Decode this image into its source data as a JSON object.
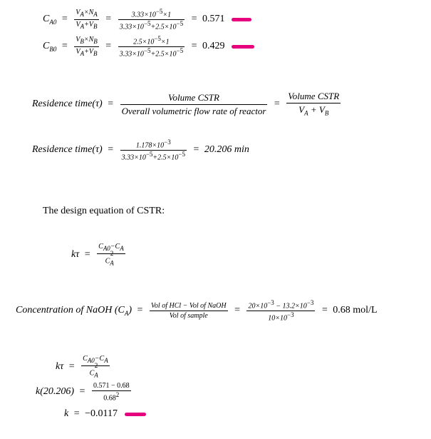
{
  "colors": {
    "text": "#000000",
    "background": "#ffffff",
    "highlight": "#e6007e"
  },
  "eq1": {
    "lhs": "C<sub class='sub'>A0</sub>",
    "f1n": "V<sub class='sub'>A</sub>×N<sub class='sub'>A</sub>",
    "f1d": "V<sub class='sub'>A</sub>+V<sub class='sub'>B</sub>",
    "f2n": "3.33×10<sup class='sup'>−5</sup>×1",
    "f2d": "3.33×10<sup class='sup'>−5</sup>+2.5×10<sup class='sup'>−5</sup>",
    "result": "0.571",
    "markWidth": 28
  },
  "eq2": {
    "lhs": "C<sub class='sub'>B0</sub>",
    "f1n": "V<sub class='sub'>B</sub>×N<sub class='sub'>B</sub>",
    "f1d": "V<sub class='sub'>A</sub>+V<sub class='sub'>B</sub>",
    "f2n": "2.5×10<sup class='sup'>−5</sup>×1",
    "f2d": "3.33×10<sup class='sup'>−5</sup>+2.5×10<sup class='sup'>−5</sup>",
    "result": "0.429",
    "markWidth": 32
  },
  "eq3": {
    "lhs": "Residence time(τ)",
    "f1n": "Volume CSTR",
    "f1d": "Overall volumetric flow rate of reactor",
    "f2n": "Volume CSTR",
    "f2d": "V<sub class='sub'>A</sub> + V<sub class='sub'>B</sub>"
  },
  "eq4": {
    "lhs": "Residence time(τ)",
    "f1n": "1.178×10<sup class='sup'>−3</sup>",
    "f1d": "3.33×10<sup class='sup'>−5</sup>+2.5×10<sup class='sup'>−5</sup>",
    "result": "20.206 min"
  },
  "heading": "The design equation of CSTR:",
  "eq5": {
    "lhs": "kτ",
    "f1n": "C<sub class='sub'>A0</sub>−C<sub class='sub'>A</sub>",
    "f1d": "C<span class='sub' style='vertical-align:sub'>A</span><span class='sup' style='position:relative;left:-5px;top:-6px'>2</span>"
  },
  "eq6": {
    "lhs": "Concentration of NaOH (C<sub class='sub'>A</sub>)",
    "f1n": "Vol of HCl − Vol of NaOH",
    "f1d": "Vol of sample",
    "f2n": "20×10<sup class='sup'>−3</sup> − 13.2×10<sup class='sup'>−3</sup>",
    "f2d": "10×10<sup class='sup'>−3</sup>",
    "result": "0.68 mol/L"
  },
  "eq7": {
    "lhs": "kτ",
    "f1n": "C<sub class='sub'>A0</sub>−C<sub class='sub'>A</sub>",
    "f1d": "C<span class='sub' style='vertical-align:sub'>A</span><span class='sup' style='position:relative;left:-5px;top:-6px'>2</span>"
  },
  "eq8": {
    "lhs": "k(20.206)",
    "f1n": "0.571 − 0.68",
    "f1d": "0.68<sup class='sup'>2</sup>"
  },
  "eq9": {
    "lhs": "k",
    "result": "−0.0117",
    "markWidth": 30
  }
}
